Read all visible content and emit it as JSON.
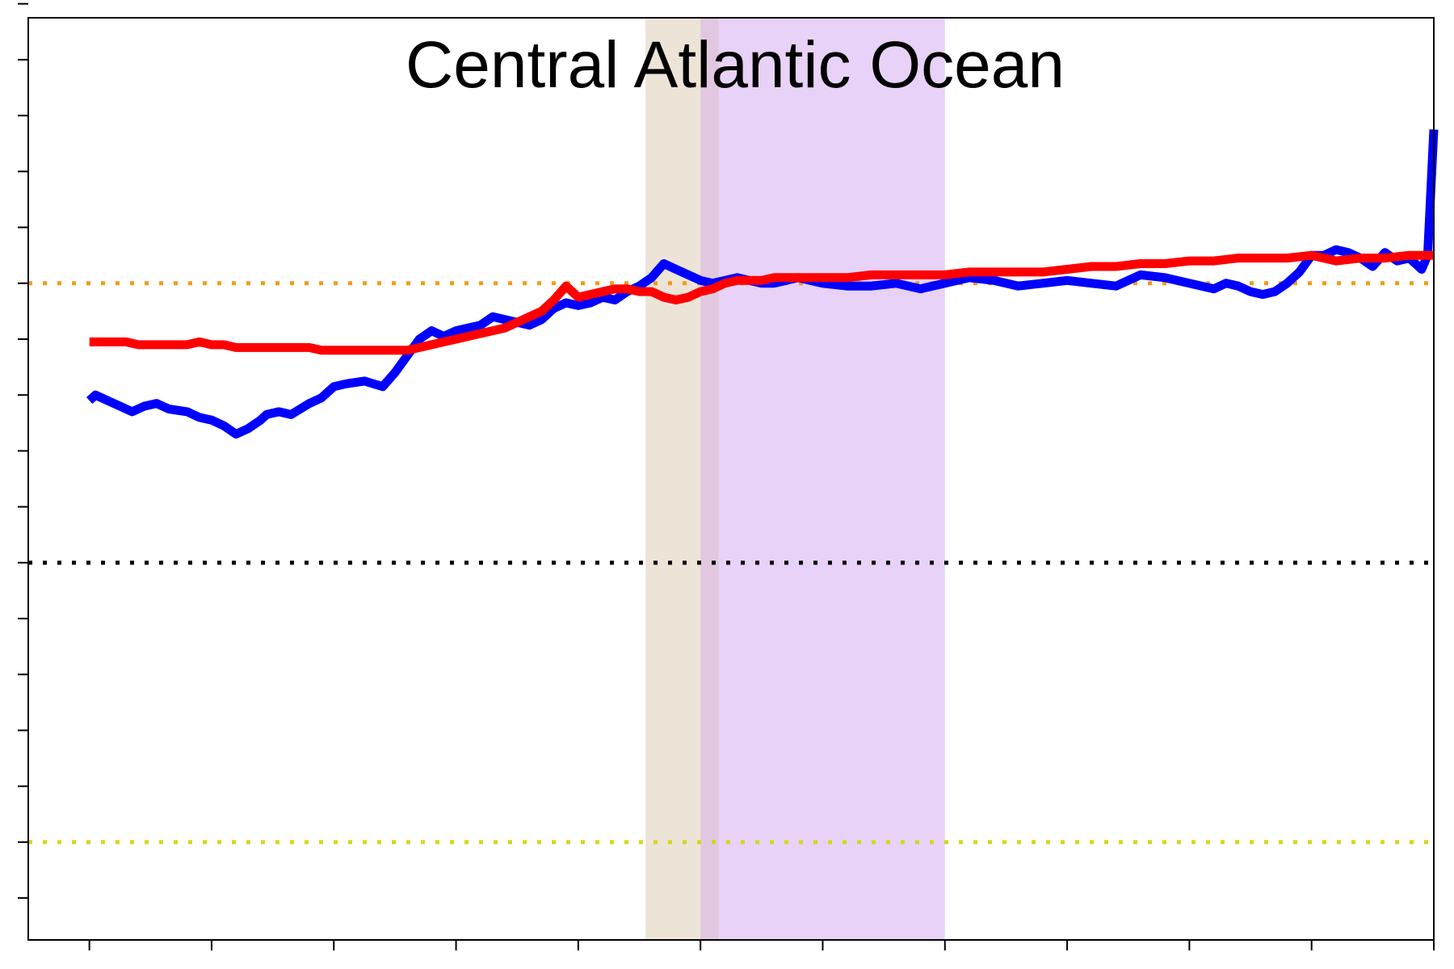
{
  "chart_data": {
    "type": "line",
    "title": "Central Atlantic Ocean",
    "xlabel": "",
    "ylabel": "",
    "xlim": [
      -0.5,
      11.0
    ],
    "ylim": [
      -0.75,
      15.75
    ],
    "x_tick_count": 12,
    "y_tick_count": 17,
    "grid": false,
    "legend": "none",
    "shaded_bands": [
      {
        "x0": 4.55,
        "x1": 5.0,
        "color": "#ede4d8"
      },
      {
        "x0": 5.0,
        "x1": 5.15,
        "color": "#e1c8e0"
      },
      {
        "x0": 5.15,
        "x1": 7.0,
        "color": "#e8d2f7"
      }
    ],
    "reference_lines": [
      {
        "y": 11.0,
        "color": "#f19c1c"
      },
      {
        "y": 6.0,
        "color": "#000000"
      },
      {
        "y": 1.0,
        "color": "#d6d61a"
      }
    ],
    "series": [
      {
        "color": "#0000ff",
        "x": [
          0.0,
          0.05,
          0.15,
          0.25,
          0.35,
          0.45,
          0.55,
          0.65,
          0.8,
          0.9,
          1.0,
          1.1,
          1.2,
          1.3,
          1.4,
          1.45,
          1.55,
          1.65,
          1.8,
          1.9,
          2.0,
          2.1,
          2.25,
          2.4,
          2.5,
          2.6,
          2.7,
          2.8,
          2.9,
          3.0,
          3.1,
          3.2,
          3.3,
          3.4,
          3.5,
          3.6,
          3.7,
          3.8,
          3.9,
          4.0,
          4.1,
          4.2,
          4.3,
          4.4,
          4.5,
          4.6,
          4.7,
          4.8,
          4.9,
          5.0,
          5.1,
          5.2,
          5.3,
          5.4,
          5.5,
          5.6,
          5.7,
          5.8,
          5.9,
          6.0,
          6.2,
          6.4,
          6.6,
          6.8,
          7.0,
          7.2,
          7.4,
          7.6,
          7.8,
          8.0,
          8.2,
          8.4,
          8.6,
          8.8,
          9.0,
          9.2,
          9.3,
          9.4,
          9.5,
          9.6,
          9.7,
          9.8,
          9.9,
          10.0,
          10.1,
          10.2,
          10.3,
          10.4,
          10.5,
          10.6,
          10.7,
          10.8,
          10.9,
          10.95,
          11.0
        ],
        "y": [
          8.9,
          9.0,
          8.9,
          8.8,
          8.7,
          8.8,
          8.85,
          8.75,
          8.7,
          8.6,
          8.55,
          8.45,
          8.3,
          8.4,
          8.55,
          8.65,
          8.7,
          8.65,
          8.85,
          8.95,
          9.15,
          9.2,
          9.25,
          9.15,
          9.4,
          9.7,
          10.0,
          10.15,
          10.05,
          10.15,
          10.2,
          10.25,
          10.4,
          10.35,
          10.3,
          10.25,
          10.35,
          10.55,
          10.65,
          10.6,
          10.65,
          10.75,
          10.7,
          10.85,
          10.95,
          11.1,
          11.35,
          11.25,
          11.15,
          11.05,
          11.0,
          11.05,
          11.1,
          11.05,
          11.0,
          11.0,
          11.05,
          11.1,
          11.05,
          11.0,
          10.95,
          10.95,
          11.0,
          10.9,
          11.0,
          11.1,
          11.05,
          10.95,
          11.0,
          11.05,
          11.0,
          10.95,
          11.15,
          11.1,
          11.0,
          10.9,
          11.0,
          10.95,
          10.85,
          10.8,
          10.85,
          11.0,
          11.2,
          11.5,
          11.5,
          11.6,
          11.55,
          11.45,
          11.3,
          11.55,
          11.4,
          11.45,
          11.25,
          11.5,
          13.75
        ]
      },
      {
        "color": "#ff0000",
        "x": [
          0.0,
          0.1,
          0.2,
          0.3,
          0.4,
          0.5,
          0.6,
          0.7,
          0.8,
          0.9,
          1.0,
          1.1,
          1.2,
          1.3,
          1.4,
          1.5,
          1.6,
          1.7,
          1.8,
          1.9,
          2.0,
          2.1,
          2.2,
          2.3,
          2.4,
          2.5,
          2.6,
          2.7,
          2.8,
          2.9,
          3.0,
          3.1,
          3.2,
          3.3,
          3.4,
          3.5,
          3.6,
          3.7,
          3.8,
          3.9,
          4.0,
          4.1,
          4.2,
          4.3,
          4.4,
          4.5,
          4.6,
          4.7,
          4.8,
          4.9,
          5.0,
          5.1,
          5.2,
          5.3,
          5.4,
          5.5,
          5.6,
          5.7,
          5.8,
          5.9,
          6.0,
          6.2,
          6.4,
          6.6,
          6.8,
          7.0,
          7.2,
          7.4,
          7.6,
          7.8,
          8.0,
          8.2,
          8.4,
          8.6,
          8.8,
          9.0,
          9.2,
          9.4,
          9.6,
          9.8,
          10.0,
          10.2,
          10.4,
          10.6,
          10.8,
          10.9,
          11.0
        ],
        "y": [
          9.95,
          9.95,
          9.95,
          9.95,
          9.9,
          9.9,
          9.9,
          9.9,
          9.9,
          9.95,
          9.9,
          9.9,
          9.85,
          9.85,
          9.85,
          9.85,
          9.85,
          9.85,
          9.85,
          9.8,
          9.8,
          9.8,
          9.8,
          9.8,
          9.8,
          9.8,
          9.8,
          9.85,
          9.9,
          9.95,
          10.0,
          10.05,
          10.1,
          10.15,
          10.2,
          10.3,
          10.4,
          10.5,
          10.7,
          10.95,
          10.75,
          10.8,
          10.85,
          10.9,
          10.9,
          10.85,
          10.85,
          10.75,
          10.7,
          10.75,
          10.85,
          10.9,
          11.0,
          11.05,
          11.05,
          11.05,
          11.1,
          11.1,
          11.1,
          11.1,
          11.1,
          11.1,
          11.15,
          11.15,
          11.15,
          11.15,
          11.2,
          11.2,
          11.2,
          11.2,
          11.25,
          11.3,
          11.3,
          11.35,
          11.35,
          11.4,
          11.4,
          11.45,
          11.45,
          11.45,
          11.5,
          11.4,
          11.45,
          11.45,
          11.5,
          11.5,
          11.5
        ]
      }
    ]
  }
}
